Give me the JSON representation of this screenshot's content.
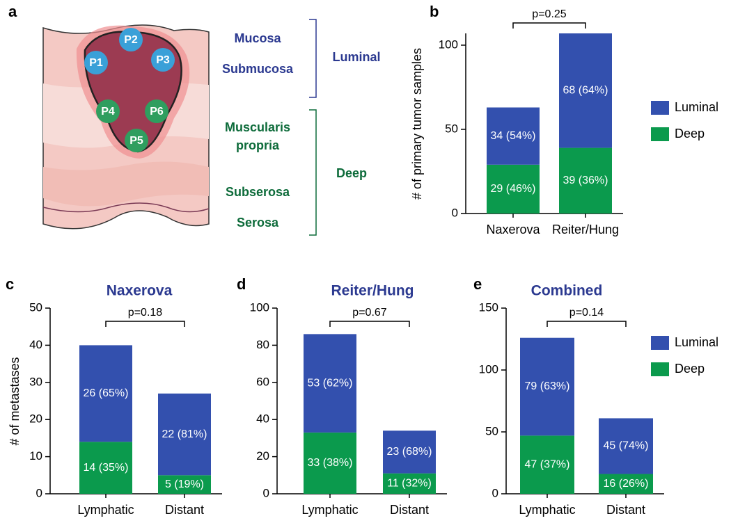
{
  "diagram": {
    "panel_label": "a",
    "points": [
      "P1",
      "P2",
      "P3",
      "P4",
      "P5",
      "P6"
    ],
    "layers": [
      "Mucosa",
      "Submucosa",
      [
        "Muscularis",
        "propria"
      ],
      "Subserosa",
      "Serosa"
    ],
    "groups": [
      "Luminal",
      "Deep"
    ]
  },
  "chart_data": [
    {
      "type": "bar",
      "stacked": true,
      "panel_label": "b",
      "ylabel": "# of primary tumor samples",
      "annotation": "p=0.25",
      "categories": [
        "Naxerova",
        "Reiter/Hung"
      ],
      "series": [
        {
          "name": "Deep",
          "color": "#0b9a4d",
          "values": [
            29,
            39
          ],
          "value_labels": [
            "29 (46%)",
            "39 (36%)"
          ]
        },
        {
          "name": "Luminal",
          "color": "#3350ae",
          "values": [
            34,
            68
          ],
          "value_labels": [
            "34 (54%)",
            "68 (64%)"
          ]
        }
      ],
      "ylim": [
        0,
        107
      ],
      "yticks": [
        0,
        50,
        100
      ],
      "legend": "right"
    },
    {
      "type": "bar",
      "stacked": true,
      "panel_label": "c",
      "title": "Naxerova",
      "ylabel": "# of metastases",
      "annotation": "p=0.18",
      "categories": [
        "Lymphatic",
        "Distant"
      ],
      "series": [
        {
          "name": "Deep",
          "color": "#0b9a4d",
          "values": [
            14,
            5
          ],
          "value_labels": [
            "14 (35%)",
            "5 (19%)"
          ]
        },
        {
          "name": "Luminal",
          "color": "#3350ae",
          "values": [
            26,
            22
          ],
          "value_labels": [
            "26 (65%)",
            "22 (81%)"
          ]
        }
      ],
      "ylim": [
        0,
        50
      ],
      "yticks": [
        0,
        10,
        20,
        30,
        40,
        50
      ]
    },
    {
      "type": "bar",
      "stacked": true,
      "panel_label": "d",
      "title": "Reiter/Hung",
      "annotation": "p=0.67",
      "categories": [
        "Lymphatic",
        "Distant"
      ],
      "series": [
        {
          "name": "Deep",
          "color": "#0b9a4d",
          "values": [
            33,
            11
          ],
          "value_labels": [
            "33 (38%)",
            "11 (32%)"
          ]
        },
        {
          "name": "Luminal",
          "color": "#3350ae",
          "values": [
            53,
            23
          ],
          "value_labels": [
            "53 (62%)",
            "23 (68%)"
          ]
        }
      ],
      "ylim": [
        0,
        100
      ],
      "yticks": [
        0,
        20,
        40,
        60,
        80,
        100
      ]
    },
    {
      "type": "bar",
      "stacked": true,
      "panel_label": "e",
      "title": "Combined",
      "annotation": "p=0.14",
      "categories": [
        "Lymphatic",
        "Distant"
      ],
      "series": [
        {
          "name": "Deep",
          "color": "#0b9a4d",
          "values": [
            47,
            16
          ],
          "value_labels": [
            "47 (37%)",
            "16 (26%)"
          ]
        },
        {
          "name": "Luminal",
          "color": "#3350ae",
          "values": [
            79,
            45
          ],
          "value_labels": [
            "79 (63%)",
            "45 (74%)"
          ]
        }
      ],
      "ylim": [
        0,
        150
      ],
      "yticks": [
        0,
        50,
        100,
        150
      ],
      "legend": "right"
    }
  ]
}
